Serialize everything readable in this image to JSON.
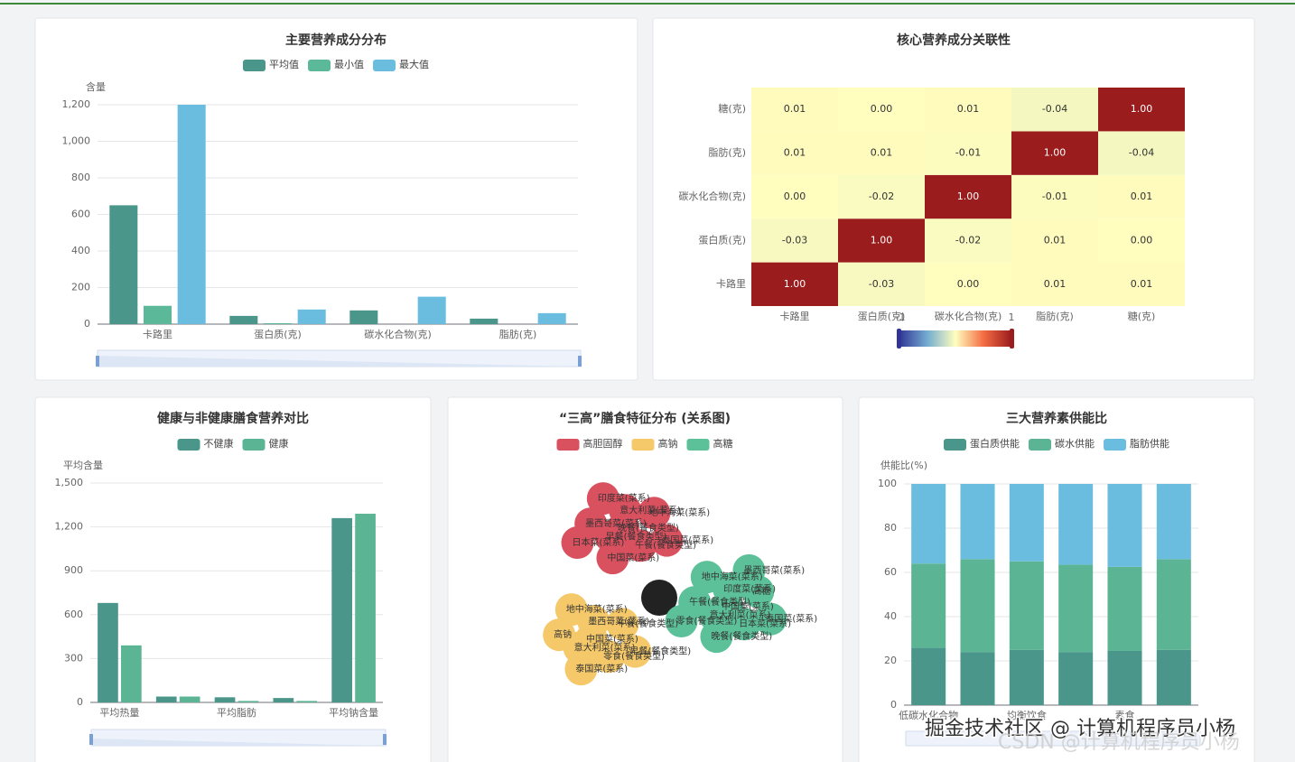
{
  "chart_data": [
    {
      "type": "bar",
      "title": "主要营养成分分布",
      "y_name": "含量",
      "categories": [
        "卡路里",
        "蛋白质(克)",
        "碳水化合物(克)",
        "脂肪(克)"
      ],
      "series": [
        {
          "name": "平均值",
          "color": "#4a968a",
          "values": [
            650,
            45,
            75,
            30
          ]
        },
        {
          "name": "最小值",
          "color": "#5bb898",
          "values": [
            100,
            5,
            0,
            0
          ]
        },
        {
          "name": "最大值",
          "color": "#6bbde0",
          "values": [
            1200,
            80,
            150,
            60
          ]
        }
      ],
      "ylim": [
        0,
        1200
      ],
      "yticks": [
        0,
        200,
        400,
        600,
        800,
        {
          "value": 1000,
          "label": "1,000"
        },
        {
          "value": 1200,
          "label": "1,200"
        }
      ],
      "grid": true
    },
    {
      "type": "heatmap",
      "title": "核心营养成分关联性",
      "x_categories": [
        "卡路里",
        "蛋白质(克)",
        "碳水化合物(克)",
        "脂肪(克)",
        "糖(克)"
      ],
      "y_categories": [
        "卡路里",
        "蛋白质(克)",
        "碳水化合物(克)",
        "脂肪(克)",
        "糖(克)"
      ],
      "values": [
        [
          1,
          -0.03,
          0,
          0.01,
          0.01
        ],
        [
          -0.03,
          1,
          -0.02,
          0.01,
          0
        ],
        [
          0,
          -0.02,
          1,
          -0.01,
          0.01
        ],
        [
          0.01,
          0.01,
          -0.01,
          1,
          -0.04
        ],
        [
          0.01,
          0,
          0.01,
          -0.04,
          1
        ]
      ],
      "value_labels": [
        [
          "1.00",
          "-0.03",
          "0.00",
          "0.01",
          "0.01"
        ],
        [
          "-0.03",
          "1.00",
          "-0.02",
          "0.01",
          "0.00"
        ],
        [
          "0.00",
          "-0.02",
          "1.00",
          "-0.01",
          "0.01"
        ],
        [
          "0.01",
          "0.01",
          "-0.01",
          "1.00",
          "-0.04"
        ],
        [
          "0.01",
          "0.00",
          "0.01",
          "-0.04",
          "1.00"
        ]
      ],
      "visual_map": {
        "min": -1,
        "max": 1,
        "colors": [
          "#313695",
          "#74add1",
          "#fffebf",
          "#f46d43",
          "#9b1c1c"
        ]
      }
    },
    {
      "type": "bar",
      "title": "健康与非健康膳食营养对比",
      "y_name": "平均含量",
      "categories": [
        "平均热量",
        null,
        "平均脂肪",
        null,
        "平均钠含量"
      ],
      "series": [
        {
          "name": "不健康",
          "color": "#4a968a",
          "values": [
            680,
            40,
            35,
            30,
            1260
          ]
        },
        {
          "name": "健康",
          "color": "#5bb595",
          "values": [
            390,
            40,
            10,
            10,
            1290
          ]
        }
      ],
      "ylim": [
        0,
        1500
      ],
      "yticks": [
        0,
        300,
        600,
        900,
        {
          "value": 1200,
          "label": "1,200"
        },
        {
          "value": 1500,
          "label": "1,500"
        }
      ],
      "grid": true
    },
    {
      "type": "graph",
      "title": "“三高”膳食特征分布 (关系图)",
      "categories": [
        "高胆固醇",
        "高钠",
        "高糖"
      ],
      "colors": [
        "#d9505f",
        "#f5c96a",
        "#5cc098"
      ],
      "nodes": [
        {
          "name": "晚餐(餐食类型)",
          "category": 0
        },
        {
          "name": "早餐(餐食类型)",
          "category": 0
        },
        {
          "name": "意大利菜(菜系)",
          "category": 0
        },
        {
          "name": "午餐(餐食类型)",
          "category": 0
        },
        {
          "name": "墨西哥菜(菜系)",
          "category": 0
        },
        {
          "name": "地中海菜(菜系)",
          "category": 0
        },
        {
          "name": "中国菜(菜系)",
          "category": 0
        },
        {
          "name": "印度菜(菜系)",
          "category": 0
        },
        {
          "name": "泰国菜(菜系)",
          "category": 0
        },
        {
          "name": "日本菜(菜系)",
          "category": 0
        },
        {
          "name": "中国菜(菜系)",
          "category": 2
        },
        {
          "name": "意大利菜(菜系)",
          "category": 2
        },
        {
          "name": "印度菜(菜系)",
          "category": 2
        },
        {
          "name": "日本菜(菜系)",
          "category": 2
        },
        {
          "name": "午餐(餐食类型)",
          "category": 2
        },
        {
          "name": "高糖",
          "category": 2
        },
        {
          "name": "晚餐(餐食类型)",
          "category": 2
        },
        {
          "name": "地中海菜(菜系)",
          "category": 2
        },
        {
          "name": "泰国菜(菜系)",
          "category": 2
        },
        {
          "name": "零食(餐食类型)",
          "category": 2
        },
        {
          "name": "墨西哥菜(菜系)",
          "category": 2
        },
        {
          "name": "中国菜(菜系)",
          "category": 1
        },
        {
          "name": "意大利菜(菜系)",
          "category": 1
        },
        {
          "name": "墨西哥菜(菜系)",
          "category": 1
        },
        {
          "name": "零食(餐食类型)",
          "category": 1
        },
        {
          "name": "高钠",
          "category": 1
        },
        {
          "name": "午餐(餐食类型)",
          "category": 1
        },
        {
          "name": "泰国菜(菜系)",
          "category": 1
        },
        {
          "name": "地中海菜(菜系)",
          "category": 1
        },
        {
          "name": "早餐(餐食类型)",
          "category": 1
        }
      ]
    },
    {
      "type": "stacked_bar",
      "title": "三大营养素供能比",
      "y_name": "供能比(%)",
      "categories": [
        "低碳水化合物",
        null,
        "均衡饮食",
        null,
        "素食",
        null
      ],
      "series": [
        {
          "name": "蛋白质供能",
          "color": "#4a968a",
          "values": [
            26,
            24,
            25,
            24,
            24.5,
            25
          ]
        },
        {
          "name": "碳水供能",
          "color": "#5bb595",
          "values": [
            38,
            42,
            40,
            39.5,
            38,
            41
          ]
        },
        {
          "name": "脂肪供能",
          "color": "#6bbde0",
          "values": [
            36,
            34,
            35,
            36.5,
            37.5,
            34
          ]
        }
      ],
      "ylim": [
        0,
        100
      ],
      "yticks": [
        0,
        20,
        40,
        60,
        80,
        100
      ],
      "grid": true
    }
  ],
  "watermark": [
    "掘金技术社区 @ 计算机程序员小杨",
    "CSDN @计算机程序员小杨"
  ]
}
